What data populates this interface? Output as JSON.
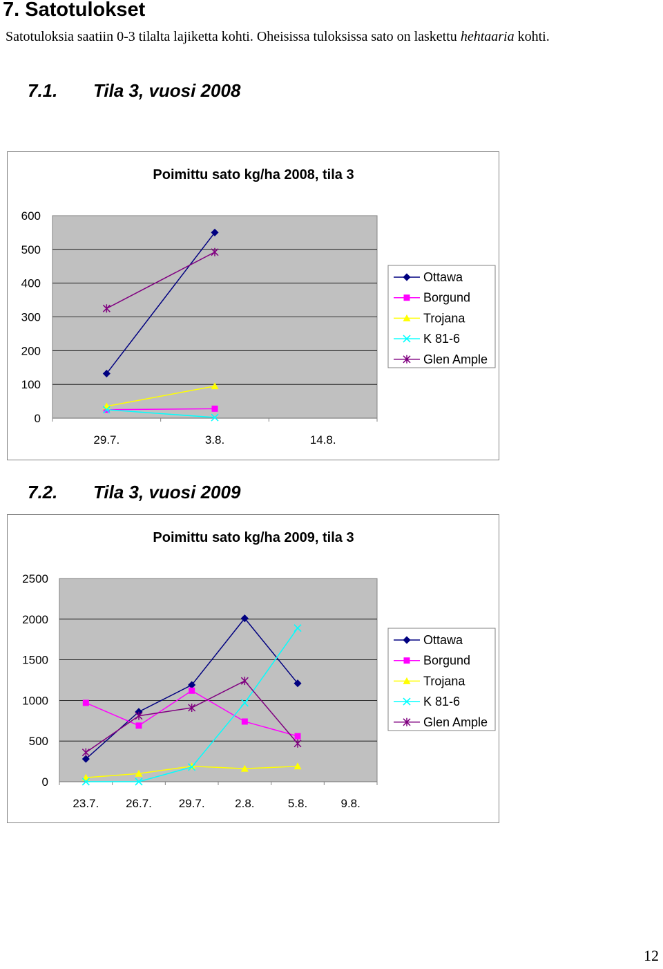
{
  "page": {
    "heading": "7. Satotulokset",
    "intro_before": "Satotuloksia saatiin 0-3 tilalta lajiketta kohti. Oheisissa tuloksissa sato on laskettu ",
    "intro_italic": "hehtaaria",
    "intro_after": " kohti.",
    "page_number": "12"
  },
  "sections": [
    {
      "number": "7.1.",
      "title": "Tila 3, vuosi 2008"
    },
    {
      "number": "7.2.",
      "title": "Tila 3, vuosi 2009"
    }
  ],
  "colors": {
    "Ottawa": "#000080",
    "Borgund": "#ff00ff",
    "Trojana": "#ffff00",
    "K 81-6": "#00ffff",
    "Glen Ample": "#800080",
    "plot_bg": "#c0c0c0"
  },
  "chart_data": [
    {
      "type": "line",
      "title": "Poimittu sato kg/ha 2008, tila 3",
      "categories": [
        "29.7.",
        "3.8.",
        "14.8."
      ],
      "ylim": [
        0,
        600
      ],
      "yticks": [
        0,
        100,
        200,
        300,
        400,
        500,
        600
      ],
      "grid": true,
      "legend": "right",
      "series": [
        {
          "name": "Ottawa",
          "marker": "diamond",
          "values": [
            132,
            550,
            null
          ]
        },
        {
          "name": "Borgund",
          "marker": "square",
          "values": [
            25,
            28,
            null
          ]
        },
        {
          "name": "Trojana",
          "marker": "triangle",
          "values": [
            35,
            95,
            null
          ]
        },
        {
          "name": "K 81-6",
          "marker": "x",
          "values": [
            25,
            2,
            null
          ]
        },
        {
          "name": "Glen Ample",
          "marker": "star",
          "values": [
            325,
            492,
            null
          ]
        }
      ]
    },
    {
      "type": "line",
      "title": "Poimittu sato kg/ha 2009, tila 3",
      "categories": [
        "23.7.",
        "26.7.",
        "29.7.",
        "2.8.",
        "5.8.",
        "9.8."
      ],
      "ylim": [
        0,
        2500
      ],
      "yticks": [
        0,
        500,
        1000,
        1500,
        2000,
        2500
      ],
      "grid": true,
      "legend": "right",
      "series": [
        {
          "name": "Ottawa",
          "marker": "diamond",
          "values": [
            280,
            860,
            1190,
            2010,
            1210,
            null
          ]
        },
        {
          "name": "Borgund",
          "marker": "square",
          "values": [
            970,
            690,
            1120,
            740,
            560,
            null
          ]
        },
        {
          "name": "Trojana",
          "marker": "triangle",
          "values": [
            50,
            100,
            190,
            160,
            190,
            null
          ]
        },
        {
          "name": "K 81-6",
          "marker": "x",
          "values": [
            0,
            0,
            180,
            970,
            1890,
            null
          ]
        },
        {
          "name": "Glen Ample",
          "marker": "star",
          "values": [
            360,
            810,
            910,
            1240,
            470,
            null
          ]
        }
      ]
    }
  ]
}
